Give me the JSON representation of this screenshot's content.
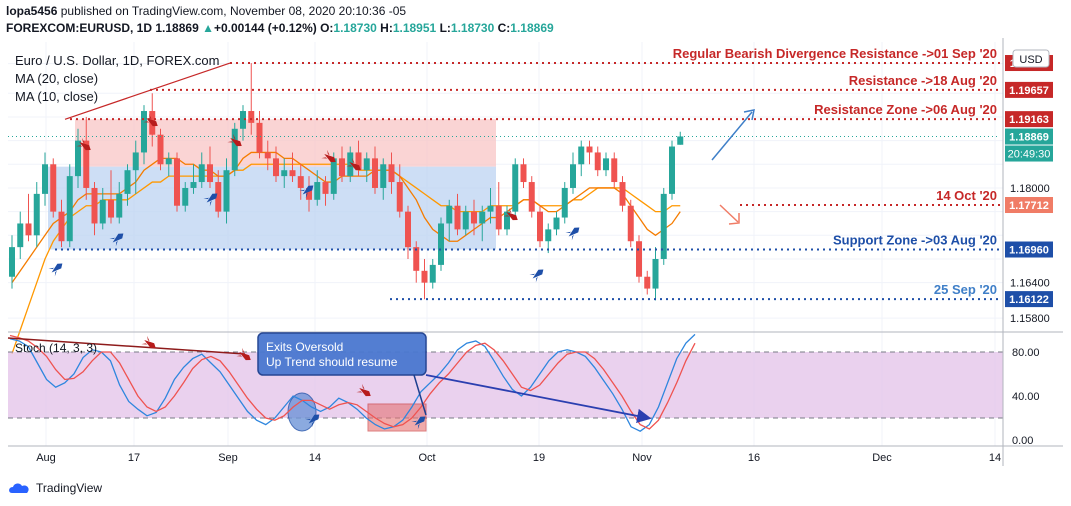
{
  "header": {
    "publisher": "lopa5456",
    "published_text": "published on TradingView.com, November 08, 2020 20:10:36 -05",
    "symbol": "FOREXCOM:EURUSD, 1D",
    "last": "1.18869",
    "change": "+0.00144 (+0.12%)",
    "o_label": "O:",
    "o": "1.18730",
    "h_label": "H:",
    "h": "1.18951",
    "l_label": "L:",
    "l": "1.18730",
    "c_label": "C:",
    "c": "1.18869"
  },
  "legend": {
    "title": "Euro / U.S. Dollar, 1D, FOREX.com",
    "ma20": "MA (20, close)",
    "ma10": "MA (10, close)",
    "stoch": "Stoch (14, 3, 3)"
  },
  "currency": "USD",
  "footer": {
    "brand": "TradingView"
  },
  "annotations": {
    "divergence": "Regular Bearish Divergence Resistance ->01 Sep '20",
    "resistance": "Resistance ->18 Aug '20",
    "resistance_zone": "Resistance Zone ->06 Aug '20",
    "oct14": "14 Oct '20",
    "support_zone": "Support Zone ->03 Aug '20",
    "sep25": "25 Sep '20",
    "callout_line1": "Exits Oversold",
    "callout_line2": "Up Trend should resume"
  },
  "colors": {
    "bull": "#26a69a",
    "bear": "#ef5350",
    "ma20": "#ff9800",
    "ma10": "#f57c00",
    "resistance": "#c62828",
    "support": "#1e4fa8",
    "support_light": "#3f7fc8",
    "stoch_k": "#2e86de",
    "stoch_d": "#ef5350",
    "stoch_band": "#e1bee7",
    "resistance_zone": "#f8c6c6",
    "support_zone": "#bcd3f2"
  },
  "chart_data": [
    {
      "type": "candlestick",
      "title": "Euro / U.S. Dollar, 1D, FOREX.com",
      "ylim": [
        1.156,
        1.205
      ],
      "x_ticks": [
        "Aug",
        "17",
        "Sep",
        "14",
        "Oct",
        "19",
        "Nov",
        "16",
        "Dec",
        "14"
      ],
      "y_ticks": [
        1.201,
        1.196,
        1.192,
        1.188,
        1.184,
        1.18,
        1.176,
        1.172,
        1.168,
        1.164,
        1.158
      ],
      "price_labels": [
        {
          "label": "1.20111",
          "value": 1.20111,
          "color": "#c62828"
        },
        {
          "label": "1.19657",
          "value": 1.19657,
          "color": "#c62828"
        },
        {
          "label": "1.19163",
          "value": 1.19163,
          "color": "#c62828"
        },
        {
          "label": "1.18869",
          "value": 1.18869,
          "color": "#26a69a",
          "sub": "20:49:30"
        },
        {
          "label": "1.18000",
          "value": 1.18,
          "color": ""
        },
        {
          "label": "1.17712",
          "value": 1.17712,
          "color": "#f07c66"
        },
        {
          "label": "1.16960",
          "value": 1.1696,
          "color": "#1e4fa8"
        },
        {
          "label": "1.16400",
          "value": 1.164,
          "color": ""
        },
        {
          "label": "1.16122",
          "value": 1.16122,
          "color": "#1e4fa8"
        },
        {
          "label": "1.15800",
          "value": 1.158,
          "color": ""
        }
      ],
      "candles": [
        [
          1.165,
          1.172,
          1.163,
          1.17
        ],
        [
          1.17,
          1.176,
          1.168,
          1.174
        ],
        [
          1.174,
          1.179,
          1.171,
          1.172
        ],
        [
          1.172,
          1.181,
          1.17,
          1.179
        ],
        [
          1.179,
          1.186,
          1.177,
          1.184
        ],
        [
          1.184,
          1.185,
          1.175,
          1.176
        ],
        [
          1.176,
          1.178,
          1.17,
          1.171
        ],
        [
          1.171,
          1.184,
          1.17,
          1.182
        ],
        [
          1.182,
          1.19,
          1.18,
          1.188
        ],
        [
          1.188,
          1.192,
          1.178,
          1.18
        ],
        [
          1.18,
          1.181,
          1.172,
          1.174
        ],
        [
          1.174,
          1.18,
          1.173,
          1.178
        ],
        [
          1.178,
          1.183,
          1.174,
          1.175
        ],
        [
          1.175,
          1.181,
          1.174,
          1.179
        ],
        [
          1.179,
          1.184,
          1.177,
          1.183
        ],
        [
          1.183,
          1.188,
          1.179,
          1.186
        ],
        [
          1.186,
          1.194,
          1.184,
          1.193
        ],
        [
          1.193,
          1.196,
          1.187,
          1.189
        ],
        [
          1.189,
          1.19,
          1.183,
          1.184
        ],
        [
          1.184,
          1.186,
          1.182,
          1.185
        ],
        [
          1.185,
          1.186,
          1.176,
          1.177
        ],
        [
          1.177,
          1.181,
          1.176,
          1.18
        ],
        [
          1.18,
          1.184,
          1.179,
          1.181
        ],
        [
          1.181,
          1.186,
          1.18,
          1.184
        ],
        [
          1.184,
          1.187,
          1.18,
          1.181
        ],
        [
          1.181,
          1.183,
          1.175,
          1.176
        ],
        [
          1.176,
          1.185,
          1.174,
          1.183
        ],
        [
          1.183,
          1.191,
          1.182,
          1.19
        ],
        [
          1.19,
          1.194,
          1.188,
          1.193
        ],
        [
          1.193,
          1.2011,
          1.189,
          1.191
        ],
        [
          1.191,
          1.193,
          1.185,
          1.186
        ],
        [
          1.186,
          1.188,
          1.183,
          1.185
        ],
        [
          1.185,
          1.187,
          1.181,
          1.182
        ],
        [
          1.182,
          1.185,
          1.18,
          1.183
        ],
        [
          1.183,
          1.186,
          1.181,
          1.182
        ],
        [
          1.182,
          1.184,
          1.178,
          1.18
        ],
        [
          1.18,
          1.182,
          1.176,
          1.178
        ],
        [
          1.178,
          1.183,
          1.177,
          1.181
        ],
        [
          1.181,
          1.182,
          1.177,
          1.179
        ],
        [
          1.179,
          1.186,
          1.178,
          1.185
        ],
        [
          1.185,
          1.187,
          1.181,
          1.182
        ],
        [
          1.182,
          1.187,
          1.181,
          1.186
        ],
        [
          1.186,
          1.188,
          1.182,
          1.183
        ],
        [
          1.183,
          1.186,
          1.181,
          1.185
        ],
        [
          1.185,
          1.187,
          1.179,
          1.18
        ],
        [
          1.18,
          1.185,
          1.178,
          1.184
        ],
        [
          1.184,
          1.186,
          1.179,
          1.181
        ],
        [
          1.181,
          1.184,
          1.175,
          1.176
        ],
        [
          1.176,
          1.177,
          1.168,
          1.17
        ],
        [
          1.17,
          1.171,
          1.164,
          1.166
        ],
        [
          1.166,
          1.168,
          1.1612,
          1.164
        ],
        [
          1.164,
          1.168,
          1.163,
          1.167
        ],
        [
          1.167,
          1.175,
          1.166,
          1.174
        ],
        [
          1.174,
          1.178,
          1.171,
          1.177
        ],
        [
          1.177,
          1.179,
          1.172,
          1.173
        ],
        [
          1.173,
          1.177,
          1.172,
          1.176
        ],
        [
          1.176,
          1.178,
          1.172,
          1.174
        ],
        [
          1.174,
          1.177,
          1.171,
          1.176
        ],
        [
          1.176,
          1.18,
          1.174,
          1.177
        ],
        [
          1.177,
          1.181,
          1.172,
          1.173
        ],
        [
          1.173,
          1.177,
          1.172,
          1.176
        ],
        [
          1.176,
          1.185,
          1.175,
          1.184
        ],
        [
          1.184,
          1.185,
          1.18,
          1.181
        ],
        [
          1.181,
          1.182,
          1.175,
          1.176
        ],
        [
          1.176,
          1.177,
          1.17,
          1.171
        ],
        [
          1.171,
          1.174,
          1.169,
          1.173
        ],
        [
          1.173,
          1.176,
          1.172,
          1.175
        ],
        [
          1.175,
          1.181,
          1.174,
          1.18
        ],
        [
          1.18,
          1.186,
          1.179,
          1.184
        ],
        [
          1.184,
          1.188,
          1.182,
          1.187
        ],
        [
          1.187,
          1.188,
          1.184,
          1.186
        ],
        [
          1.186,
          1.187,
          1.182,
          1.183
        ],
        [
          1.183,
          1.186,
          1.182,
          1.185
        ],
        [
          1.185,
          1.186,
          1.18,
          1.181
        ],
        [
          1.181,
          1.182,
          1.176,
          1.177
        ],
        [
          1.177,
          1.178,
          1.17,
          1.171
        ],
        [
          1.171,
          1.172,
          1.164,
          1.165
        ],
        [
          1.165,
          1.166,
          1.162,
          1.163
        ],
        [
          1.163,
          1.17,
          1.161,
          1.168
        ],
        [
          1.168,
          1.18,
          1.167,
          1.179
        ],
        [
          1.179,
          1.188,
          1.178,
          1.187
        ],
        [
          1.1873,
          1.1895,
          1.1873,
          1.1887
        ]
      ],
      "ma20": [
        1.152,
        1.156,
        1.16,
        1.164,
        1.168,
        1.171,
        1.173,
        1.175,
        1.176,
        1.177,
        1.177,
        1.178,
        1.178,
        1.178,
        1.178,
        1.179,
        1.18,
        1.181,
        1.181,
        1.182,
        1.182,
        1.182,
        1.182,
        1.182,
        1.182,
        1.182,
        1.182,
        1.183,
        1.183,
        1.184,
        1.184,
        1.184,
        1.184,
        1.184,
        1.184,
        1.184,
        1.184,
        1.184,
        1.184,
        1.184,
        1.184,
        1.184,
        1.183,
        1.183,
        1.183,
        1.183,
        1.183,
        1.182,
        1.181,
        1.18,
        1.179,
        1.178,
        1.177,
        1.177,
        1.176,
        1.176,
        1.176,
        1.176,
        1.177,
        1.177,
        1.177,
        1.177,
        1.178,
        1.178,
        1.177,
        1.177,
        1.177,
        1.177,
        1.178,
        1.178,
        1.179,
        1.18,
        1.18,
        1.18,
        1.18,
        1.179,
        1.178,
        1.177,
        1.176,
        1.176,
        1.177,
        1.177
      ],
      "ma10": [
        1.164,
        1.166,
        1.168,
        1.17,
        1.172,
        1.174,
        1.175,
        1.176,
        1.178,
        1.179,
        1.179,
        1.179,
        1.179,
        1.179,
        1.18,
        1.181,
        1.183,
        1.184,
        1.185,
        1.185,
        1.185,
        1.184,
        1.184,
        1.183,
        1.183,
        1.182,
        1.182,
        1.183,
        1.185,
        1.186,
        1.186,
        1.186,
        1.186,
        1.185,
        1.185,
        1.184,
        1.183,
        1.182,
        1.181,
        1.181,
        1.182,
        1.182,
        1.182,
        1.182,
        1.183,
        1.183,
        1.183,
        1.182,
        1.18,
        1.178,
        1.175,
        1.173,
        1.172,
        1.171,
        1.171,
        1.172,
        1.173,
        1.174,
        1.175,
        1.175,
        1.176,
        1.177,
        1.178,
        1.178,
        1.177,
        1.176,
        1.176,
        1.177,
        1.178,
        1.179,
        1.18,
        1.18,
        1.18,
        1.18,
        1.179,
        1.177,
        1.175,
        1.173,
        1.172,
        1.173,
        1.174,
        1.176
      ]
    },
    {
      "type": "line",
      "title": "Stoch (14, 3, 3)",
      "ylim": [
        0,
        100
      ],
      "y_ticks": [
        "80.00",
        "40.00",
        "0.00"
      ],
      "bands": [
        80,
        20
      ],
      "series": [
        {
          "name": "%K",
          "values": [
            92,
            90,
            85,
            70,
            55,
            48,
            52,
            60,
            75,
            82,
            80,
            72,
            50,
            35,
            28,
            22,
            25,
            38,
            55,
            66,
            74,
            78,
            70,
            62,
            50,
            38,
            26,
            18,
            14,
            20,
            30,
            40,
            36,
            30,
            26,
            30,
            38,
            34,
            28,
            20,
            14,
            10,
            12,
            18,
            30,
            44,
            52,
            60,
            70,
            82,
            88,
            90,
            85,
            72,
            58,
            46,
            40,
            48,
            60,
            72,
            80,
            82,
            80,
            76,
            66,
            54,
            42,
            28,
            12,
            8,
            14,
            30,
            52,
            74,
            88,
            96
          ]
        },
        {
          "name": "%D",
          "values": [
            95,
            93,
            90,
            84,
            76,
            64,
            55,
            56,
            62,
            72,
            80,
            80,
            70,
            55,
            40,
            30,
            26,
            30,
            40,
            52,
            65,
            73,
            76,
            72,
            62,
            50,
            38,
            28,
            20,
            18,
            22,
            30,
            36,
            36,
            32,
            28,
            32,
            34,
            32,
            26,
            20,
            15,
            12,
            14,
            20,
            30,
            42,
            52,
            60,
            70,
            80,
            86,
            88,
            82,
            72,
            60,
            48,
            45,
            50,
            60,
            70,
            78,
            80,
            80,
            74,
            64,
            52,
            40,
            26,
            14,
            10,
            18,
            34,
            52,
            72,
            88
          ]
        }
      ]
    }
  ]
}
